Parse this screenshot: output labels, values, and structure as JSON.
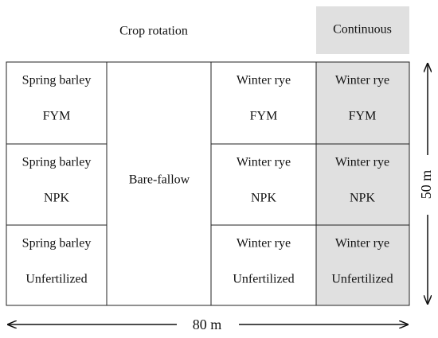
{
  "header": {
    "rotation_label": "Crop rotation",
    "continuous_label": "Continuous"
  },
  "fallow_label": "Bare-fallow",
  "rows": [
    [
      {
        "crop": "Spring barley",
        "treatment": "FYM"
      },
      {
        "crop": "Winter rye",
        "treatment": "FYM"
      },
      {
        "crop": "Winter rye",
        "treatment": "FYM"
      }
    ],
    [
      {
        "crop": "Spring barley",
        "treatment": "NPK"
      },
      {
        "crop": "Winter rye",
        "treatment": "NPK"
      },
      {
        "crop": "Winter rye",
        "treatment": "NPK"
      }
    ],
    [
      {
        "crop": "Spring barley",
        "treatment": "Unfertilized"
      },
      {
        "crop": "Winter rye",
        "treatment": "Unfertilized"
      },
      {
        "crop": "Winter rye",
        "treatment": "Unfertilized"
      }
    ]
  ],
  "dimensions": {
    "width": "80 m",
    "height": "50 m"
  }
}
